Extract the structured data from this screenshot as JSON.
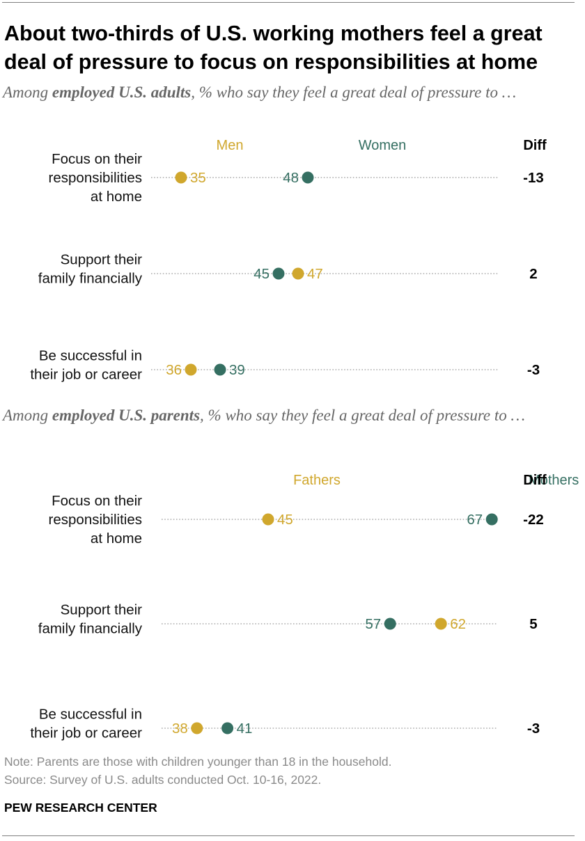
{
  "title": "About two-thirds of U.S. working mothers feel a great deal of pressure to focus on responsibilities at home",
  "colors": {
    "men": "#d0a72d",
    "women": "#356f62",
    "dots": "#aaaaaa"
  },
  "chart_data": [
    {
      "type": "dot",
      "subtitle": {
        "prefix": "Among ",
        "bold": "employed U.S. adults",
        "suffix": ", % who say they feel a great deal of pressure to …"
      },
      "legend": {
        "a": "Men",
        "b": "Women",
        "diff": "Diff"
      },
      "xlim": [
        30,
        68
      ],
      "rows": [
        {
          "label": [
            "Focus on their",
            "responsibilities",
            "at home"
          ],
          "a": 35,
          "b": 48,
          "diff": "-13"
        },
        {
          "label": [
            "Support their",
            "family financially"
          ],
          "a": 47,
          "b": 45,
          "diff": "2"
        },
        {
          "label": [
            "Be successful in",
            "their job or career"
          ],
          "a": 36,
          "b": 39,
          "diff": "-3"
        }
      ]
    },
    {
      "type": "dot",
      "subtitle": {
        "prefix": "Among ",
        "bold": "employed U.S. parents",
        "suffix": ", % who say they feel a great deal of pressure to …"
      },
      "legend": {
        "a": "Fathers",
        "b": "Mothers",
        "diff": "Diff"
      },
      "xlim": [
        30,
        68
      ],
      "rows": [
        {
          "label": [
            "Focus on their",
            "responsibilities",
            "at home"
          ],
          "a": 45,
          "b": 67,
          "diff": "-22"
        },
        {
          "label": [
            "Support their",
            "family financially"
          ],
          "a": 62,
          "b": 57,
          "diff": "5"
        },
        {
          "label": [
            "Be successful in",
            "their job or career"
          ],
          "a": 38,
          "b": 41,
          "diff": "-3"
        }
      ]
    }
  ],
  "note": "Note: Parents are those with children younger than 18 in the household.",
  "source": "Source: Survey of U.S. adults conducted Oct. 10-16, 2022.",
  "brand": "PEW RESEARCH CENTER"
}
